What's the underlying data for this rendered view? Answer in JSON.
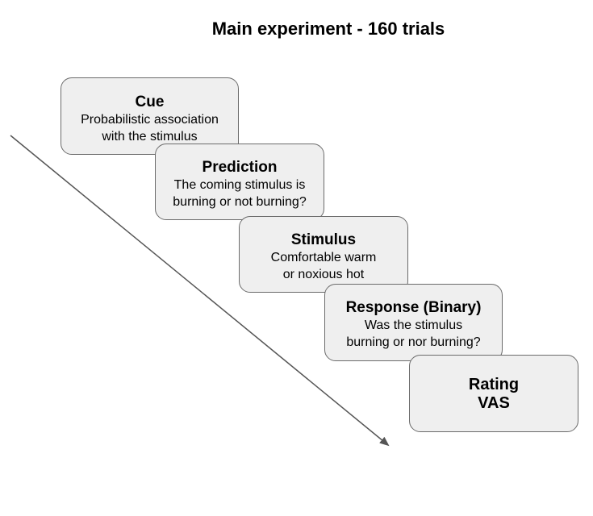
{
  "title": "Main experiment - 160 trials",
  "steps": [
    {
      "title": "Cue",
      "lines": [
        "Probabilistic association",
        "with the stimulus"
      ]
    },
    {
      "title": "Prediction",
      "lines": [
        "The coming stimulus is",
        "burning or not burning?"
      ]
    },
    {
      "title": "Stimulus",
      "lines": [
        "Comfortable warm",
        "or noxious hot"
      ]
    },
    {
      "title": "Response (Binary)",
      "lines": [
        "Was the stimulus",
        "burning or nor burning?"
      ]
    },
    {
      "title": "Rating",
      "lines": [
        "VAS"
      ]
    }
  ],
  "colors": {
    "box_fill": "#efefef",
    "box_border": "#6b6b6b",
    "arrow": "#555555"
  }
}
